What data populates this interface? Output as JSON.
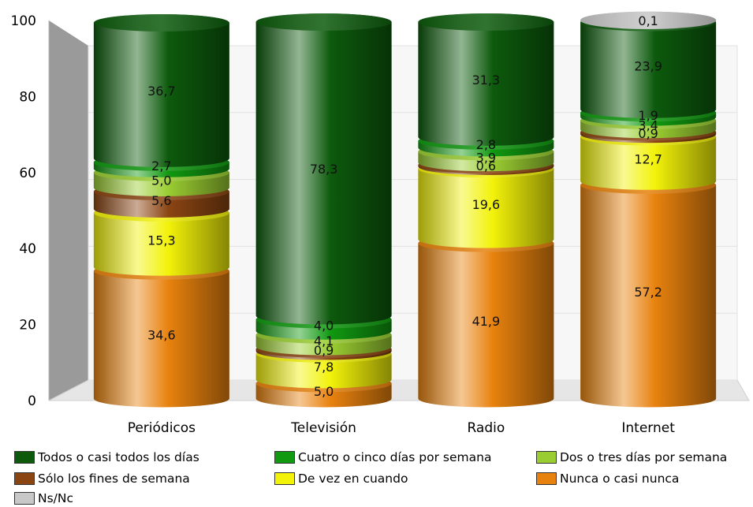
{
  "chart_data": {
    "type": "bar",
    "stacked": true,
    "style": "3d-cylinder",
    "categories": [
      "Periódicos",
      "Televisión",
      "Radio",
      "Internet"
    ],
    "ylim": [
      0,
      100
    ],
    "yticks": [
      0,
      20,
      40,
      60,
      80,
      100
    ],
    "legend_position": "bottom",
    "series": [
      {
        "name": "Nunca o casi nunca",
        "color": "#e8820e",
        "values": [
          34.6,
          5.0,
          41.9,
          57.2
        ],
        "labels": [
          "34,6",
          "5,0",
          "41,9",
          "57,2"
        ]
      },
      {
        "name": "De vez en cuando",
        "color": "#f2f20a",
        "values": [
          15.3,
          7.8,
          19.6,
          12.7
        ],
        "labels": [
          "15,3",
          "7,8",
          "19,6",
          "12,7"
        ]
      },
      {
        "name": "Sólo los fines de semana",
        "color": "#8b4513",
        "values": [
          5.6,
          0.9,
          0.6,
          0.9
        ],
        "labels": [
          "5,6",
          "0,9",
          "0,6",
          "0,9"
        ]
      },
      {
        "name": "Dos o tres días por semana",
        "color": "#9acd32",
        "values": [
          5.0,
          4.1,
          3.9,
          3.4
        ],
        "labels": [
          "5,0",
          "4,1",
          "3,9",
          "3,4"
        ]
      },
      {
        "name": "Cuatro o cinco días por semana",
        "color": "#119911",
        "values": [
          2.7,
          4.0,
          2.8,
          1.9
        ],
        "labels": [
          "2,7",
          "4,0",
          "2,8",
          "1,9"
        ]
      },
      {
        "name": "Todos o casi todos los días",
        "color": "#0d5a0d",
        "values": [
          36.7,
          78.3,
          31.3,
          23.9
        ],
        "labels": [
          "36,7",
          "78,3",
          "31,3",
          "23,9"
        ]
      },
      {
        "name": "Ns/Nc",
        "color": "#c8c8c8",
        "values": [
          0,
          0,
          0,
          0.1
        ],
        "labels": [
          "",
          "",
          "",
          "0,1"
        ]
      }
    ]
  },
  "legend": [
    {
      "label": "Todos o casi todos los días",
      "color": "#0d5a0d"
    },
    {
      "label": "Cuatro o cinco días por semana",
      "color": "#119911"
    },
    {
      "label": "Dos o tres días por semana",
      "color": "#9acd32"
    },
    {
      "label": "Sólo los fines de semana",
      "color": "#8b4513"
    },
    {
      "label": "De vez en cuando",
      "color": "#f2f20a"
    },
    {
      "label": "Nunca o casi nunca",
      "color": "#e8820e"
    },
    {
      "label": "Ns/Nc",
      "color": "#c8c8c8"
    }
  ]
}
